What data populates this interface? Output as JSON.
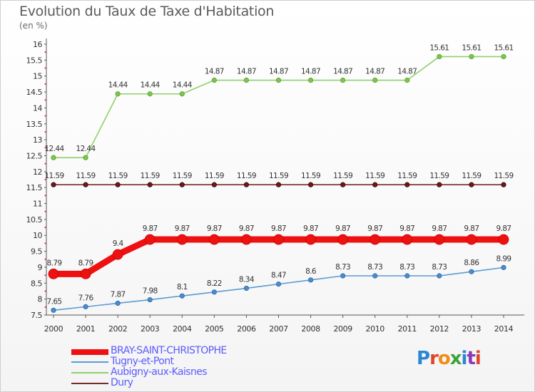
{
  "chart_data": {
    "type": "line",
    "title": "Evolution du Taux de Taxe d'Habitation",
    "subtitle": "(en %)",
    "x": [
      "2000",
      "2001",
      "2002",
      "2003",
      "2004",
      "2005",
      "2006",
      "2007",
      "2008",
      "2009",
      "2010",
      "2011",
      "2012",
      "2013",
      "2014"
    ],
    "ylim": [
      7.5,
      16
    ],
    "yticks": [
      "7.5",
      "8",
      "8.5",
      "9",
      "9.5",
      "10",
      "10.5",
      "11",
      "11.5",
      "12",
      "12.5",
      "13",
      "13.5",
      "14",
      "14.5",
      "15",
      "15.5",
      "16"
    ],
    "grid": false,
    "legend_position": "bottom",
    "series": [
      {
        "name": "BRAY-SAINT-CHRISTOPHE",
        "color": "#ee1111",
        "values": [
          8.79,
          8.79,
          9.4,
          9.87,
          9.87,
          9.87,
          9.87,
          9.87,
          9.87,
          9.87,
          9.87,
          9.87,
          9.87,
          9.87,
          9.87
        ],
        "labels": [
          "8.79",
          "8.79",
          "9.4",
          "9.87",
          "9.87",
          "9.87",
          "9.87",
          "9.87",
          "9.87",
          "9.87",
          "9.87",
          "9.87",
          "9.87",
          "9.87",
          "9.87"
        ]
      },
      {
        "name": "Tugny-et-Pont",
        "color": "#5b9bd5",
        "values": [
          7.65,
          7.76,
          7.87,
          7.98,
          8.1,
          8.22,
          8.34,
          8.47,
          8.6,
          8.73,
          8.73,
          8.73,
          8.73,
          8.86,
          8.99
        ],
        "labels": [
          "7.65",
          "7.76",
          "7.87",
          "7.98",
          "8.1",
          "8.22",
          "8.34",
          "8.47",
          "8.6",
          "8.73",
          "8.73",
          "8.73",
          "8.73",
          "8.86",
          "8.99"
        ]
      },
      {
        "name": "Aubigny-aux-Kaisnes",
        "color": "#8fd16a",
        "values": [
          12.44,
          12.44,
          14.44,
          14.44,
          14.44,
          14.87,
          14.87,
          14.87,
          14.87,
          14.87,
          14.87,
          14.87,
          15.61,
          15.61,
          15.61
        ],
        "labels": [
          "12.44",
          "12.44",
          "14.44",
          "14.44",
          "14.44",
          "14.87",
          "14.87",
          "14.87",
          "14.87",
          "14.87",
          "14.87",
          "14.87",
          "15.61",
          "15.61",
          "15.61"
        ]
      },
      {
        "name": "Dury",
        "color": "#7a2a2a",
        "values": [
          11.59,
          11.59,
          11.59,
          11.59,
          11.59,
          11.59,
          11.59,
          11.59,
          11.59,
          11.59,
          11.59,
          11.59,
          11.59,
          11.59,
          11.59
        ],
        "labels": [
          "11.59",
          "11.59",
          "11.59",
          "11.59",
          "11.59",
          "11.59",
          "11.59",
          "11.59",
          "11.59",
          "11.59",
          "11.59",
          "11.59",
          "11.59",
          "11.59",
          "11.59"
        ]
      }
    ]
  },
  "logo": {
    "text": "Proxiti"
  }
}
